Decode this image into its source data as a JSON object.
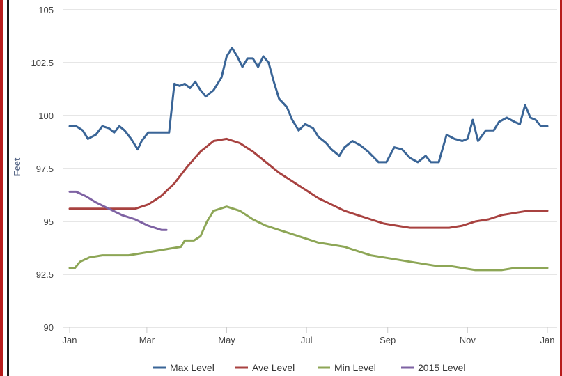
{
  "chart_data": {
    "type": "line",
    "title": "",
    "xlabel": "",
    "ylabel": "Feet",
    "ylim": [
      90,
      105
    ],
    "xlim": [
      0,
      365
    ],
    "grid": true,
    "legend_position": "bottom",
    "y_ticks": [
      "90",
      "92.5",
      "95",
      "97.5",
      "100",
      "102.5",
      "105"
    ],
    "x_ticks": [
      {
        "label": "Jan",
        "day": 0
      },
      {
        "label": "Mar",
        "day": 59
      },
      {
        "label": "May",
        "day": 120
      },
      {
        "label": "Jul",
        "day": 181
      },
      {
        "label": "Sep",
        "day": 243
      },
      {
        "label": "Nov",
        "day": 304
      },
      {
        "label": "Jan",
        "day": 365
      }
    ],
    "series": [
      {
        "name": "Max Level",
        "color": "#3a6597",
        "points": [
          [
            0,
            99.5
          ],
          [
            5,
            99.5
          ],
          [
            10,
            99.3
          ],
          [
            14,
            98.9
          ],
          [
            20,
            99.1
          ],
          [
            25,
            99.5
          ],
          [
            30,
            99.4
          ],
          [
            34,
            99.2
          ],
          [
            38,
            99.5
          ],
          [
            42,
            99.3
          ],
          [
            47,
            98.9
          ],
          [
            52,
            98.4
          ],
          [
            55,
            98.8
          ],
          [
            60,
            99.2
          ],
          [
            68,
            99.2
          ],
          [
            76,
            99.2
          ],
          [
            80,
            101.5
          ],
          [
            84,
            101.4
          ],
          [
            88,
            101.5
          ],
          [
            92,
            101.3
          ],
          [
            96,
            101.6
          ],
          [
            100,
            101.2
          ],
          [
            104,
            100.9
          ],
          [
            110,
            101.2
          ],
          [
            116,
            101.8
          ],
          [
            120,
            102.8
          ],
          [
            124,
            103.2
          ],
          [
            128,
            102.8
          ],
          [
            132,
            102.3
          ],
          [
            136,
            102.7
          ],
          [
            140,
            102.7
          ],
          [
            144,
            102.3
          ],
          [
            148,
            102.8
          ],
          [
            152,
            102.5
          ],
          [
            156,
            101.6
          ],
          [
            160,
            100.8
          ],
          [
            166,
            100.4
          ],
          [
            170,
            99.8
          ],
          [
            175,
            99.3
          ],
          [
            180,
            99.6
          ],
          [
            186,
            99.4
          ],
          [
            190,
            99.0
          ],
          [
            196,
            98.7
          ],
          [
            200,
            98.4
          ],
          [
            206,
            98.1
          ],
          [
            210,
            98.5
          ],
          [
            216,
            98.8
          ],
          [
            222,
            98.6
          ],
          [
            228,
            98.3
          ],
          [
            236,
            97.8
          ],
          [
            242,
            97.8
          ],
          [
            248,
            98.5
          ],
          [
            254,
            98.4
          ],
          [
            260,
            98.0
          ],
          [
            266,
            97.8
          ],
          [
            272,
            98.1
          ],
          [
            276,
            97.8
          ],
          [
            282,
            97.8
          ],
          [
            288,
            99.1
          ],
          [
            294,
            98.9
          ],
          [
            300,
            98.8
          ],
          [
            304,
            98.9
          ],
          [
            308,
            99.8
          ],
          [
            312,
            98.8
          ],
          [
            318,
            99.3
          ],
          [
            324,
            99.3
          ],
          [
            328,
            99.7
          ],
          [
            334,
            99.9
          ],
          [
            340,
            99.7
          ],
          [
            344,
            99.6
          ],
          [
            348,
            100.5
          ],
          [
            352,
            99.9
          ],
          [
            356,
            99.8
          ],
          [
            360,
            99.5
          ],
          [
            365,
            99.5
          ]
        ]
      },
      {
        "name": "Ave Level",
        "color": "#a84240",
        "points": [
          [
            0,
            95.6
          ],
          [
            10,
            95.6
          ],
          [
            20,
            95.6
          ],
          [
            30,
            95.6
          ],
          [
            40,
            95.6
          ],
          [
            50,
            95.6
          ],
          [
            60,
            95.8
          ],
          [
            70,
            96.2
          ],
          [
            80,
            96.8
          ],
          [
            90,
            97.6
          ],
          [
            100,
            98.3
          ],
          [
            110,
            98.8
          ],
          [
            120,
            98.9
          ],
          [
            130,
            98.7
          ],
          [
            140,
            98.3
          ],
          [
            150,
            97.8
          ],
          [
            160,
            97.3
          ],
          [
            170,
            96.9
          ],
          [
            180,
            96.5
          ],
          [
            190,
            96.1
          ],
          [
            200,
            95.8
          ],
          [
            210,
            95.5
          ],
          [
            220,
            95.3
          ],
          [
            230,
            95.1
          ],
          [
            240,
            94.9
          ],
          [
            250,
            94.8
          ],
          [
            260,
            94.7
          ],
          [
            270,
            94.7
          ],
          [
            280,
            94.7
          ],
          [
            290,
            94.7
          ],
          [
            300,
            94.8
          ],
          [
            310,
            95.0
          ],
          [
            320,
            95.1
          ],
          [
            330,
            95.3
          ],
          [
            340,
            95.4
          ],
          [
            350,
            95.5
          ],
          [
            360,
            95.5
          ],
          [
            365,
            95.5
          ]
        ]
      },
      {
        "name": "Min Level",
        "color": "#8da656",
        "points": [
          [
            0,
            92.8
          ],
          [
            4,
            92.8
          ],
          [
            8,
            93.1
          ],
          [
            15,
            93.3
          ],
          [
            25,
            93.4
          ],
          [
            35,
            93.4
          ],
          [
            45,
            93.4
          ],
          [
            55,
            93.5
          ],
          [
            65,
            93.6
          ],
          [
            75,
            93.7
          ],
          [
            85,
            93.8
          ],
          [
            88,
            94.1
          ],
          [
            95,
            94.1
          ],
          [
            100,
            94.3
          ],
          [
            105,
            95.0
          ],
          [
            110,
            95.5
          ],
          [
            115,
            95.6
          ],
          [
            120,
            95.7
          ],
          [
            130,
            95.5
          ],
          [
            140,
            95.1
          ],
          [
            150,
            94.8
          ],
          [
            160,
            94.6
          ],
          [
            170,
            94.4
          ],
          [
            180,
            94.2
          ],
          [
            190,
            94.0
          ],
          [
            200,
            93.9
          ],
          [
            210,
            93.8
          ],
          [
            220,
            93.6
          ],
          [
            230,
            93.4
          ],
          [
            240,
            93.3
          ],
          [
            250,
            93.2
          ],
          [
            260,
            93.1
          ],
          [
            270,
            93.0
          ],
          [
            280,
            92.9
          ],
          [
            290,
            92.9
          ],
          [
            300,
            92.8
          ],
          [
            310,
            92.7
          ],
          [
            320,
            92.7
          ],
          [
            330,
            92.7
          ],
          [
            340,
            92.8
          ],
          [
            350,
            92.8
          ],
          [
            360,
            92.8
          ],
          [
            365,
            92.8
          ]
        ]
      },
      {
        "name": "2015 Level",
        "color": "#7e62a3",
        "points": [
          [
            0,
            96.4
          ],
          [
            5,
            96.4
          ],
          [
            12,
            96.2
          ],
          [
            20,
            95.9
          ],
          [
            30,
            95.6
          ],
          [
            40,
            95.3
          ],
          [
            50,
            95.1
          ],
          [
            60,
            94.8
          ],
          [
            65,
            94.7
          ],
          [
            70,
            94.6
          ],
          [
            74,
            94.6
          ]
        ]
      }
    ]
  }
}
